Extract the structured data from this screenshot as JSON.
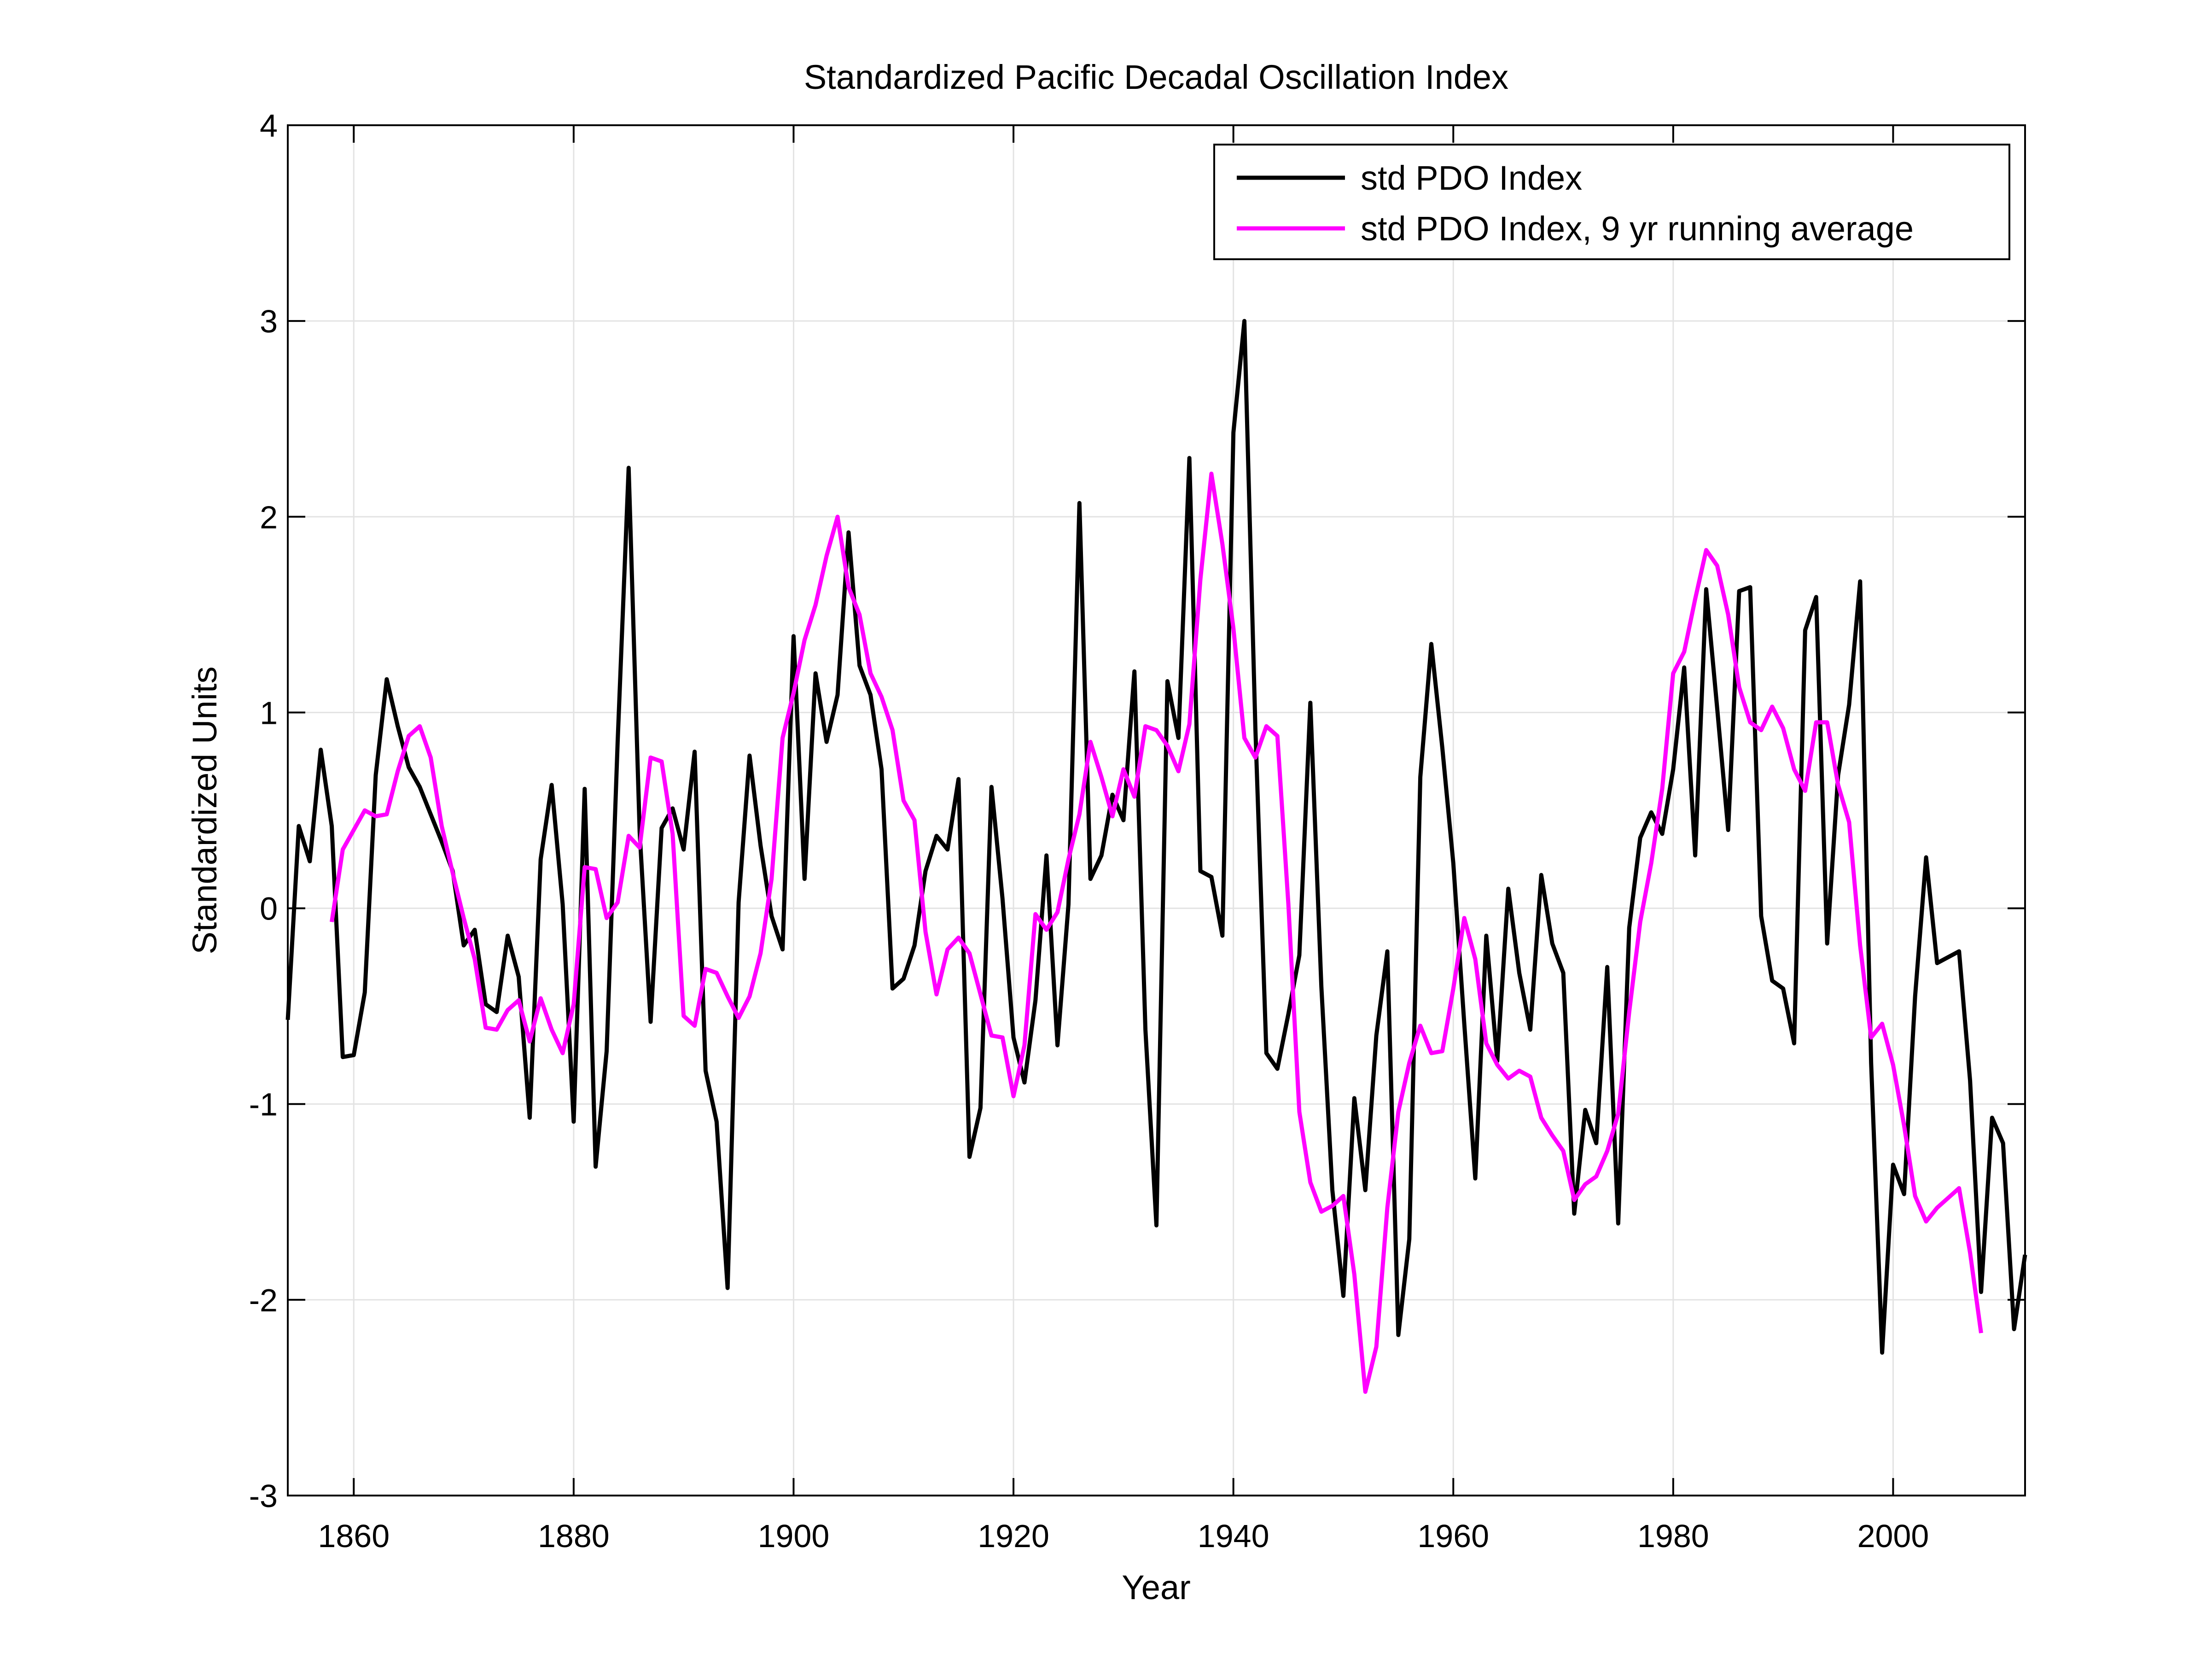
{
  "chart_data": {
    "type": "line",
    "title": "Standardized Pacific Decadal Oscillation Index",
    "xlabel": "Year",
    "ylabel": "Standardized Units",
    "xlim": [
      1854,
      2012
    ],
    "ylim": [
      -3,
      4
    ],
    "xticks": [
      1860,
      1880,
      1900,
      1920,
      1940,
      1960,
      1980,
      2000
    ],
    "yticks": [
      -3,
      -2,
      -1,
      0,
      1,
      2,
      3,
      4
    ],
    "grid": true,
    "legend_position": "top-right",
    "series": [
      {
        "name": "std PDO Index",
        "color": "#000000",
        "x_start": 1854,
        "values": [
          -0.57,
          0.42,
          0.24,
          0.81,
          0.42,
          -0.76,
          -0.75,
          -0.43,
          0.68,
          1.17,
          0.93,
          0.72,
          0.62,
          0.48,
          0.34,
          0.19,
          -0.19,
          -0.11,
          -0.49,
          -0.53,
          -0.14,
          -0.35,
          -1.07,
          0.25,
          0.63,
          0.02,
          -1.09,
          0.61,
          -1.32,
          -0.73,
          0.85,
          2.25,
          0.39,
          -0.58,
          0.41,
          0.51,
          0.3,
          0.8,
          -0.83,
          -1.09,
          -1.94,
          0.03,
          0.78,
          0.32,
          -0.04,
          -0.21,
          1.39,
          0.15,
          1.2,
          0.85,
          1.09,
          1.92,
          1.24,
          1.09,
          0.71,
          -0.41,
          -0.36,
          -0.19,
          0.19,
          0.37,
          0.3,
          0.66,
          -1.27,
          -1.02,
          0.62,
          0.05,
          -0.66,
          -0.89,
          -0.47,
          0.27,
          -0.7,
          0.02,
          2.07,
          0.15,
          0.27,
          0.58,
          0.45,
          1.21,
          -0.62,
          -1.62,
          1.16,
          0.87,
          2.3,
          0.19,
          0.16,
          -0.14,
          2.43,
          3.0,
          0.92,
          -0.74,
          -0.82,
          -0.54,
          -0.24,
          1.05,
          -0.4,
          -1.44,
          -1.98,
          -0.97,
          -1.44,
          -0.65,
          -0.22,
          -2.18,
          -1.69,
          0.67,
          1.35,
          0.82,
          0.23,
          -0.59,
          -1.38,
          -0.14,
          -0.78,
          0.1,
          -0.33,
          -0.62,
          0.17,
          -0.18,
          -0.33,
          -1.56,
          -1.03,
          -1.2,
          -0.3,
          -1.61,
          -0.1,
          0.36,
          0.49,
          0.38,
          0.71,
          1.23,
          0.27,
          1.63,
          1.02,
          0.4,
          1.62,
          1.64,
          -0.04,
          -0.37,
          -0.41,
          -0.69,
          1.42,
          1.59,
          -0.18,
          0.68,
          1.04,
          1.67,
          -0.79,
          -2.27,
          -1.31,
          -1.46,
          -0.45,
          0.26,
          -0.28,
          -0.25,
          -0.22,
          -0.88,
          -1.96,
          -1.07,
          -1.2,
          -2.15,
          -1.77
        ]
      },
      {
        "name": "std PDO Index, 9 yr running average",
        "color": "#ff00ff",
        "x_start": 1858,
        "values": [
          -0.07,
          0.3,
          0.4,
          0.5,
          0.47,
          0.48,
          0.7,
          0.88,
          0.93,
          0.77,
          0.42,
          0.18,
          -0.05,
          -0.26,
          -0.61,
          -0.62,
          -0.52,
          -0.47,
          -0.68,
          -0.46,
          -0.62,
          -0.74,
          -0.49,
          0.21,
          0.2,
          -0.05,
          0.03,
          0.37,
          0.31,
          0.77,
          0.75,
          0.38,
          -0.55,
          -0.6,
          -0.31,
          -0.33,
          -0.45,
          -0.56,
          -0.45,
          -0.23,
          0.15,
          0.87,
          1.1,
          1.37,
          1.55,
          1.8,
          2.0,
          1.64,
          1.5,
          1.2,
          1.08,
          0.91,
          0.55,
          0.45,
          -0.12,
          -0.44,
          -0.21,
          -0.15,
          -0.23,
          -0.44,
          -0.65,
          -0.66,
          -0.96,
          -0.7,
          -0.03,
          -0.11,
          -0.02,
          0.25,
          0.48,
          0.85,
          0.67,
          0.47,
          0.71,
          0.57,
          0.93,
          0.91,
          0.83,
          0.7,
          0.94,
          1.68,
          2.22,
          1.86,
          1.43,
          0.87,
          0.77,
          0.93,
          0.88,
          0.02,
          -1.04,
          -1.4,
          -1.55,
          -1.52,
          -1.47,
          -1.87,
          -2.47,
          -2.24,
          -1.53,
          -1.04,
          -0.79,
          -0.6,
          -0.74,
          -0.73,
          -0.41,
          -0.05,
          -0.26,
          -0.69,
          -0.8,
          -0.87,
          -0.83,
          -0.86,
          -1.07,
          -1.16,
          -1.24,
          -1.49,
          -1.41,
          -1.37,
          -1.24,
          -1.05,
          -0.53,
          -0.07,
          0.23,
          0.61,
          1.2,
          1.31,
          1.58,
          1.83,
          1.75,
          1.5,
          1.13,
          0.95,
          0.91,
          1.03,
          0.92,
          0.71,
          0.6,
          0.95,
          0.95,
          0.63,
          0.44,
          -0.19,
          -0.66,
          -0.59,
          -0.8,
          -1.11,
          -1.47,
          -1.6,
          -1.53,
          -1.48,
          -1.43,
          -1.76,
          -2.17
        ]
      }
    ]
  }
}
